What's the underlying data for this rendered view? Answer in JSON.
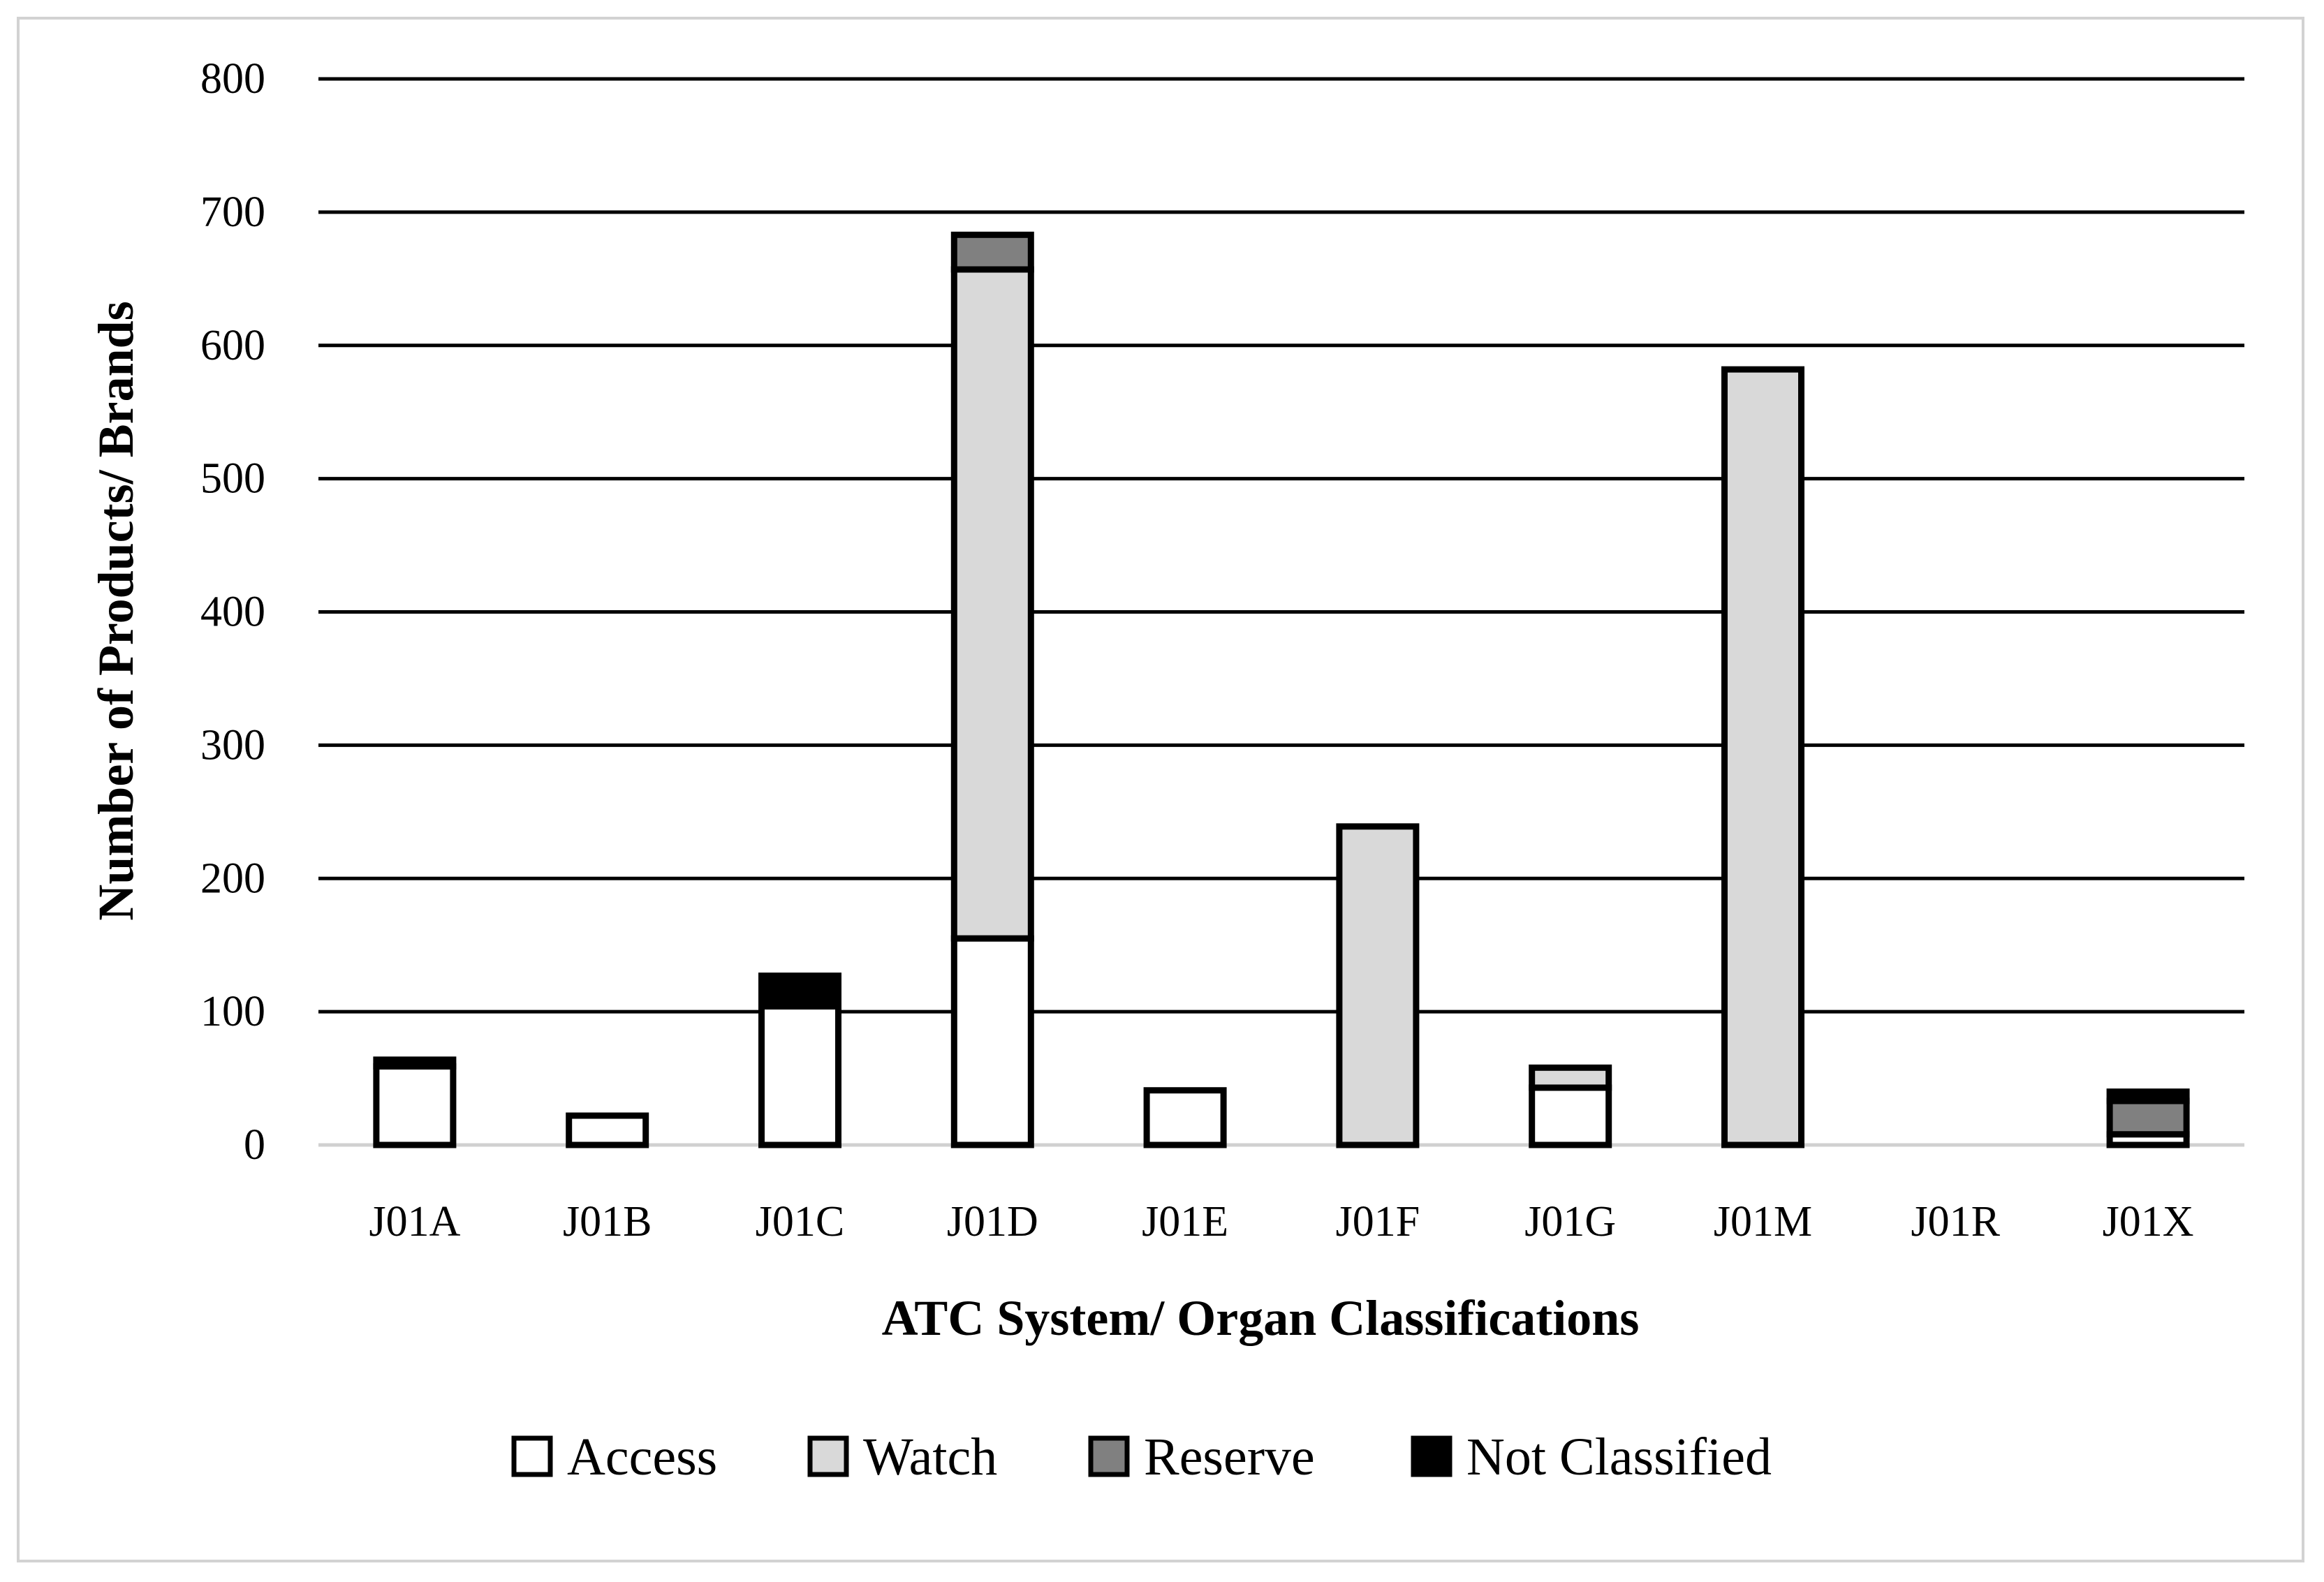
{
  "chart_data": {
    "type": "bar",
    "stacked": true,
    "categories": [
      "J01A",
      "J01B",
      "J01C",
      "J01D",
      "J01E",
      "J01F",
      "J01G",
      "J01M",
      "J01R",
      "J01X"
    ],
    "series": [
      {
        "name": "Access",
        "color": "#ffffff",
        "values": [
          59,
          22,
          104,
          155,
          41,
          0,
          43,
          0,
          0,
          8
        ]
      },
      {
        "name": "Watch",
        "color": "#d9d9d9",
        "values": [
          0,
          0,
          0,
          502,
          0,
          239,
          15,
          582,
          0,
          0
        ]
      },
      {
        "name": "Reserve",
        "color": "#808080",
        "values": [
          0,
          0,
          0,
          26,
          0,
          0,
          0,
          0,
          0,
          25
        ]
      },
      {
        "name": "Not Classified",
        "color": "#000000",
        "values": [
          5,
          0,
          23,
          0,
          0,
          0,
          0,
          0,
          0,
          7
        ]
      }
    ],
    "xlabel": "ATC System/ Organ Classifications",
    "ylabel": "Number of Products/ Brands",
    "ylim": [
      0,
      800
    ],
    "yticks": [
      0,
      100,
      200,
      300,
      400,
      500,
      600,
      700,
      800
    ],
    "grid": true,
    "legend_position": "bottom"
  }
}
